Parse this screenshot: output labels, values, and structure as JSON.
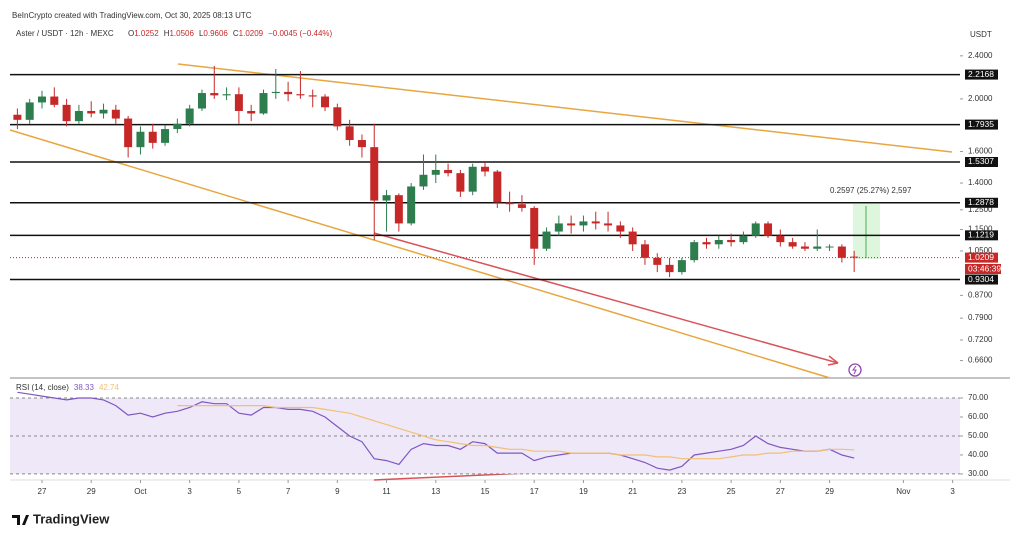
{
  "header": {
    "credit": "BeInCrypto created with TradingView.com, Oct 30, 2025 08:13 UTC",
    "logo": "TradingView"
  },
  "chart_data": [
    {
      "type": "candlestick",
      "title": "Aster / USDT · 12h · MEXC",
      "ohlc_header": [
        {
          "label": "O",
          "value": "1.0252"
        },
        {
          "label": "H",
          "value": "1.0506"
        },
        {
          "label": "L",
          "value": "0.9606"
        },
        {
          "label": "C",
          "value": "1.0209"
        }
      ],
      "change": "−0.0045 (−0.44%)",
      "y_axis_label": "USDT",
      "countdown": "03:46:39",
      "measure_label": "0.2597 (25.27%) 2,597",
      "log_scale": true,
      "up_color": "#2e7d4f",
      "down_color": "#c62828",
      "level_color": "#111111",
      "x": [
        -1,
        -0.5,
        0,
        0.5,
        1,
        1.5,
        2,
        2.5,
        3,
        3.5,
        4,
        4.5,
        5,
        5.5,
        6,
        6.5,
        7,
        7.5,
        8,
        8.5,
        9,
        9.5,
        10,
        10.5,
        11,
        11.5,
        12,
        12.5,
        13,
        13.5,
        14,
        14.5,
        15,
        15.5,
        16,
        16.5,
        17,
        17.5,
        18,
        18.5,
        19,
        19.5,
        20,
        20.5,
        21,
        21.5,
        22,
        22.5,
        23,
        23.5,
        24,
        24.5,
        25,
        25.5,
        26,
        26.5,
        27,
        27.5,
        28,
        28.5,
        29,
        29.5,
        30,
        30.5,
        31,
        31.5,
        32,
        32.5,
        33
      ],
      "open": [
        1.87,
        1.83,
        1.97,
        2.02,
        1.95,
        1.82,
        1.9,
        1.88,
        1.91,
        1.84,
        1.63,
        1.74,
        1.66,
        1.76,
        1.8,
        1.92,
        2.05,
        2.03,
        2.04,
        1.9,
        1.88,
        2.05,
        2.06,
        2.04,
        2.03,
        2.02,
        1.93,
        1.78,
        1.68,
        1.63,
        1.3,
        1.33,
        1.18,
        1.38,
        1.45,
        1.48,
        1.46,
        1.35,
        1.5,
        1.47,
        1.29,
        1.28,
        1.26,
        1.06,
        1.14,
        1.18,
        1.17,
        1.19,
        1.18,
        1.17,
        1.14,
        1.08,
        1.02,
        0.99,
        0.96,
        1.01,
        1.09,
        1.08,
        1.1,
        1.09,
        1.12,
        1.18,
        1.12,
        1.09,
        1.07,
        1.06,
        1.07,
        1.07,
        1.0252
      ],
      "high": [
        1.92,
        2.0,
        2.07,
        2.1,
        2.0,
        1.95,
        1.98,
        1.96,
        1.95,
        1.86,
        1.78,
        1.8,
        1.79,
        1.84,
        1.95,
        2.08,
        2.3,
        2.1,
        2.1,
        1.95,
        2.08,
        2.27,
        2.15,
        2.25,
        2.08,
        2.04,
        1.96,
        1.83,
        1.72,
        1.8,
        1.36,
        1.34,
        1.4,
        1.58,
        1.58,
        1.52,
        1.48,
        1.52,
        1.53,
        1.48,
        1.35,
        1.33,
        1.27,
        1.16,
        1.22,
        1.22,
        1.22,
        1.24,
        1.24,
        1.19,
        1.16,
        1.1,
        1.04,
        1.02,
        1.02,
        1.1,
        1.11,
        1.12,
        1.13,
        1.14,
        1.19,
        1.19,
        1.15,
        1.11,
        1.09,
        1.15,
        1.08,
        1.08,
        1.0506
      ],
      "low": [
        1.76,
        1.8,
        1.92,
        1.93,
        1.78,
        1.8,
        1.85,
        1.84,
        1.8,
        1.56,
        1.58,
        1.62,
        1.64,
        1.73,
        1.78,
        1.9,
        2.0,
        1.99,
        1.8,
        1.82,
        1.87,
        2.0,
        1.98,
        2.0,
        1.93,
        1.9,
        1.75,
        1.64,
        1.56,
        1.1,
        1.14,
        1.14,
        1.17,
        1.36,
        1.4,
        1.44,
        1.32,
        1.33,
        1.44,
        1.26,
        1.24,
        1.24,
        0.99,
        1.05,
        1.12,
        1.13,
        1.14,
        1.15,
        1.14,
        1.11,
        1.05,
        0.99,
        0.96,
        0.94,
        0.95,
        1.0,
        1.06,
        1.06,
        1.07,
        1.08,
        1.11,
        1.11,
        1.07,
        1.06,
        1.05,
        1.05,
        1.05,
        1.0,
        0.9606
      ],
      "close": [
        1.83,
        1.97,
        2.02,
        1.95,
        1.82,
        1.9,
        1.88,
        1.91,
        1.84,
        1.63,
        1.74,
        1.66,
        1.76,
        1.8,
        1.92,
        2.05,
        2.03,
        2.04,
        1.9,
        1.88,
        2.05,
        2.06,
        2.04,
        2.03,
        2.02,
        1.93,
        1.78,
        1.68,
        1.63,
        1.3,
        1.33,
        1.18,
        1.38,
        1.45,
        1.48,
        1.46,
        1.35,
        1.5,
        1.47,
        1.29,
        1.28,
        1.26,
        1.06,
        1.14,
        1.18,
        1.17,
        1.19,
        1.18,
        1.17,
        1.14,
        1.08,
        1.02,
        0.99,
        0.96,
        1.01,
        1.09,
        1.08,
        1.1,
        1.09,
        1.12,
        1.18,
        1.12,
        1.09,
        1.07,
        1.06,
        1.07,
        1.07,
        1.02,
        1.0209
      ],
      "levels": [
        2.2168,
        1.7935,
        1.5307,
        1.2878,
        1.1219,
        0.9304
      ],
      "xlim": [
        -1.3,
        37.3
      ],
      "xticks": [
        {
          "value": 0,
          "label": "27"
        },
        {
          "value": 2,
          "label": "29"
        },
        {
          "value": 4,
          "label": "Oct"
        },
        {
          "value": 6,
          "label": "3"
        },
        {
          "value": 8,
          "label": "5"
        },
        {
          "value": 10,
          "label": "7"
        },
        {
          "value": 12,
          "label": "9"
        },
        {
          "value": 14,
          "label": "11"
        },
        {
          "value": 16,
          "label": "13"
        },
        {
          "value": 18,
          "label": "15"
        },
        {
          "value": 20,
          "label": "17"
        },
        {
          "value": 22,
          "label": "19"
        },
        {
          "value": 24,
          "label": "21"
        },
        {
          "value": 26,
          "label": "23"
        },
        {
          "value": 28,
          "label": "25"
        },
        {
          "value": 30,
          "label": "27"
        },
        {
          "value": 32,
          "label": "29"
        },
        {
          "value": 35,
          "label": "Nov"
        },
        {
          "value": 37,
          "label": "3"
        }
      ],
      "ylim": [
        0.613,
        2.735
      ],
      "yticks": [
        {
          "value": 2.4,
          "label": "2.4000"
        },
        {
          "value": 2.0,
          "label": "2.0000"
        },
        {
          "value": 1.6,
          "label": "1.6000"
        },
        {
          "value": 1.4,
          "label": "1.4000"
        },
        {
          "value": 1.25,
          "label": "1.2500"
        },
        {
          "value": 1.15,
          "label": "1.1500"
        },
        {
          "value": 1.05,
          "label": "1.0500"
        },
        {
          "value": 0.87,
          "label": "0.8700"
        },
        {
          "value": 0.79,
          "label": "0.7900"
        },
        {
          "value": 0.72,
          "label": "0.7200"
        },
        {
          "value": 0.66,
          "label": "0.6600"
        }
      ]
    },
    {
      "type": "line",
      "title": "RSI (14, close)",
      "ylim": [
        26.8,
        79.5
      ],
      "yticks": [
        {
          "value": 70,
          "label": "70.00"
        },
        {
          "value": 60,
          "label": "60.00"
        },
        {
          "value": 50,
          "label": "50.00"
        },
        {
          "value": 40,
          "label": "40.00"
        },
        {
          "value": 30,
          "label": "30.00"
        }
      ],
      "band": [
        30,
        70
      ],
      "dashed_levels": [
        70,
        50,
        30
      ],
      "band_color": "#efe8f8",
      "series": [
        {
          "color": "#7e57c2",
          "values": [
            73,
            72,
            71,
            70,
            69,
            70,
            70,
            69,
            66,
            61,
            62,
            60,
            62,
            63,
            65,
            68,
            67,
            67,
            62,
            61,
            65,
            65,
            64,
            64,
            63,
            60,
            55,
            50,
            47,
            38,
            37,
            35,
            43,
            46,
            45,
            45,
            43,
            47,
            46,
            41,
            41,
            41,
            37,
            39,
            40,
            41,
            41,
            41,
            41,
            40,
            38,
            36,
            33,
            32,
            34,
            40,
            41,
            42,
            43,
            45,
            50,
            46,
            44,
            43,
            42,
            42,
            43,
            40,
            38.33
          ]
        },
        {
          "color": "#f2c073",
          "values": [
            null,
            null,
            null,
            null,
            null,
            null,
            null,
            null,
            null,
            null,
            null,
            null,
            null,
            66,
            66,
            66,
            66,
            66,
            66,
            66,
            66,
            65,
            65,
            65,
            65,
            64,
            63,
            62,
            60,
            58,
            56,
            54,
            52,
            50,
            48,
            47,
            46,
            45,
            45,
            44,
            43,
            43,
            42,
            42,
            42,
            41,
            41,
            41,
            41,
            40,
            40,
            40,
            39,
            39,
            38,
            38,
            38,
            38,
            39,
            40,
            40,
            41,
            41,
            42,
            42,
            42,
            43,
            43,
            42.74
          ]
        }
      ]
    }
  ]
}
